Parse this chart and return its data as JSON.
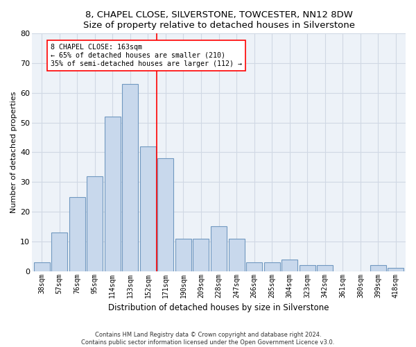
{
  "title1": "8, CHAPEL CLOSE, SILVERSTONE, TOWCESTER, NN12 8DW",
  "title2": "Size of property relative to detached houses in Silverstone",
  "xlabel": "Distribution of detached houses by size in Silverstone",
  "ylabel": "Number of detached properties",
  "categories": [
    "38sqm",
    "57sqm",
    "76sqm",
    "95sqm",
    "114sqm",
    "133sqm",
    "152sqm",
    "171sqm",
    "190sqm",
    "209sqm",
    "228sqm",
    "247sqm",
    "266sqm",
    "285sqm",
    "304sqm",
    "323sqm",
    "342sqm",
    "361sqm",
    "380sqm",
    "399sqm",
    "418sqm"
  ],
  "values": [
    3,
    13,
    25,
    32,
    52,
    63,
    42,
    38,
    11,
    11,
    15,
    11,
    3,
    3,
    4,
    2,
    2,
    0,
    0,
    2,
    1
  ],
  "bar_color": "#c8d8ec",
  "bar_edge_color": "#7098c0",
  "annotation_line1": "8 CHAPEL CLOSE: 163sqm",
  "annotation_line2": "← 65% of detached houses are smaller (210)",
  "annotation_line3": "35% of semi-detached houses are larger (112) →",
  "vline_x_index": 6.5,
  "ylim": [
    0,
    80
  ],
  "yticks": [
    0,
    10,
    20,
    30,
    40,
    50,
    60,
    70,
    80
  ],
  "footer1": "Contains HM Land Registry data © Crown copyright and database right 2024.",
  "footer2": "Contains public sector information licensed under the Open Government Licence v3.0.",
  "bg_color": "#edf2f8",
  "grid_color": "#d0d8e4",
  "title_fontsize": 9.5,
  "xlabel_fontsize": 8.5,
  "ylabel_fontsize": 8
}
